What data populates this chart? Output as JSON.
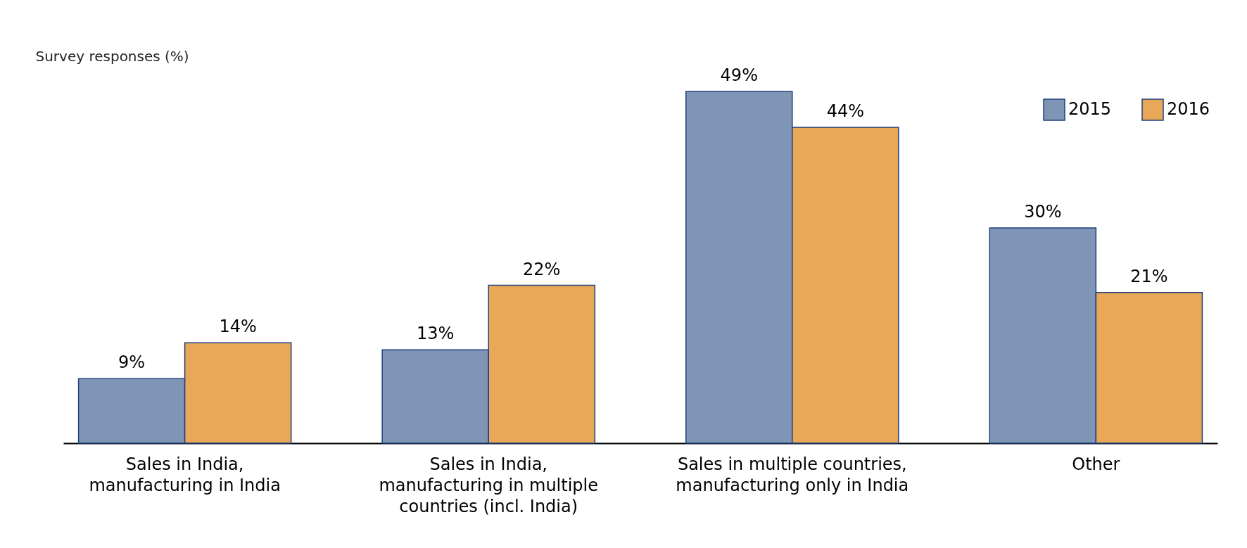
{
  "chart_data": {
    "type": "bar",
    "ylabel": "Survey responses (%)",
    "categories": [
      "Sales in India, manufacturing in India",
      "Sales in India, manufacturing in multiple countries (incl. India)",
      "Sales in multiple countries, manufacturing only in India",
      "Other"
    ],
    "series": [
      {
        "name": "2015",
        "color": "#7f95b5",
        "values": [
          9,
          13,
          49,
          30
        ],
        "value_labels": [
          "9%",
          "13%",
          "49%",
          "30%"
        ]
      },
      {
        "name": "2016",
        "color": "#e8a857",
        "values": [
          14,
          22,
          44,
          21
        ],
        "value_labels": [
          "14%",
          "22%",
          "44%",
          "21%"
        ]
      }
    ],
    "legend": "top right",
    "grid": false
  }
}
